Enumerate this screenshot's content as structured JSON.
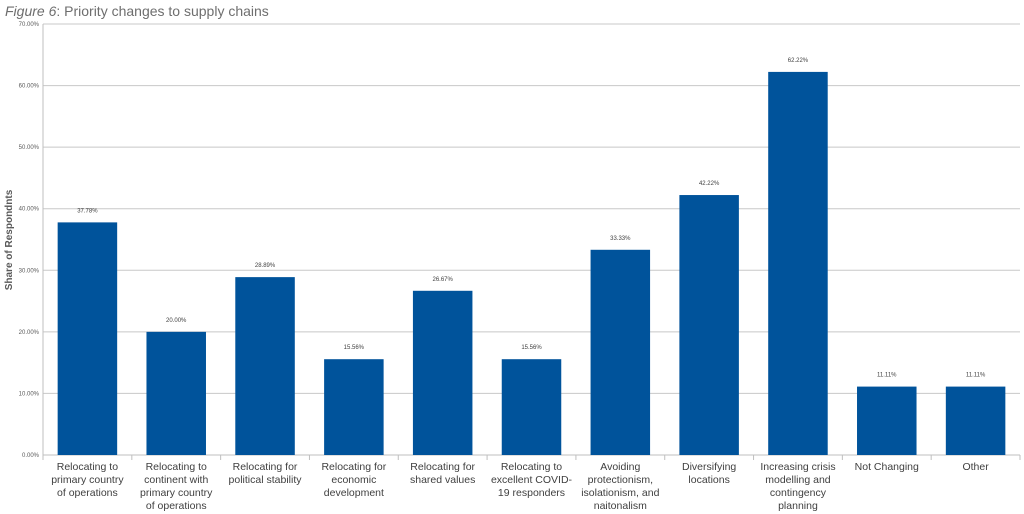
{
  "title": {
    "prefix": "Figure 6",
    "separator": ": ",
    "text": "Priority changes to supply chains"
  },
  "chart_data": {
    "type": "bar",
    "title": "Figure 6: Priority changes to supply chains",
    "ylabel": "Share of Respondnts",
    "xlabel": "",
    "ylim": [
      0,
      70
    ],
    "yticks": [
      0,
      10,
      20,
      30,
      40,
      50,
      60,
      70
    ],
    "ytick_labels": [
      "0.00%",
      "10.00%",
      "20.00%",
      "30.00%",
      "40.00%",
      "50.00%",
      "60.00%",
      "70.00%"
    ],
    "grid": true,
    "legend": "none",
    "bar_color": "#00539b",
    "categories": [
      "Relocating to primary country of operations",
      "Relocating to continent with primary country of operations",
      "Relocating for political stability",
      "Relocating for economic development",
      "Relocating for shared values",
      "Relocating to excellent COVID-19 responders",
      "Avoiding protectionism, isolationism, and naitonalism",
      "Diversifying locations",
      "Increasing crisis modelling and contingency planning",
      "Not Changing",
      "Other"
    ],
    "values": [
      37.78,
      20.0,
      28.89,
      15.56,
      26.67,
      15.56,
      33.33,
      42.22,
      62.22,
      11.11,
      11.11
    ],
    "data_labels": [
      "37.78%",
      "20.00%",
      "28.89%",
      "15.56%",
      "26.67%",
      "15.56%",
      "33.33%",
      "42.22%",
      "62.22%",
      "11.11%",
      "11.11%"
    ]
  }
}
